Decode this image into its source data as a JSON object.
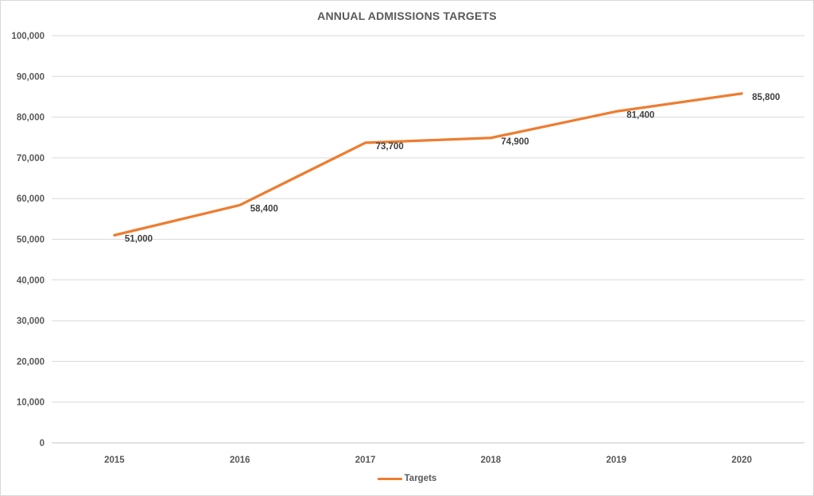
{
  "title": "ANNUAL ADMISSIONS TARGETS",
  "legend": {
    "label": "Targets"
  },
  "colors": {
    "series": "#ED7D31",
    "grid": "#D9D9D9",
    "axis": "#C6C6C6",
    "tick_text": "#595959",
    "data_label_text": "#404040",
    "title_text": "#595959",
    "border": "#D9D9D9"
  },
  "chart_data": {
    "type": "line",
    "title": "ANNUAL ADMISSIONS TARGETS",
    "categories": [
      "2015",
      "2016",
      "2017",
      "2018",
      "2019",
      "2020"
    ],
    "series": [
      {
        "name": "Targets",
        "values": [
          51000,
          58400,
          73700,
          74900,
          81400,
          85800
        ]
      }
    ],
    "point_labels": [
      "51,000",
      "58,400",
      "73,700",
      "74,900",
      "81,400",
      "85,800"
    ],
    "xlabel": "",
    "ylabel": "",
    "ylim": [
      0,
      100000
    ],
    "ytick_step": 10000,
    "ytick_labels": [
      "0",
      "10,000",
      "20,000",
      "30,000",
      "40,000",
      "50,000",
      "60,000",
      "70,000",
      "80,000",
      "90,000",
      "100,000"
    ],
    "grid": "horizontal",
    "legend_position": "bottom"
  }
}
